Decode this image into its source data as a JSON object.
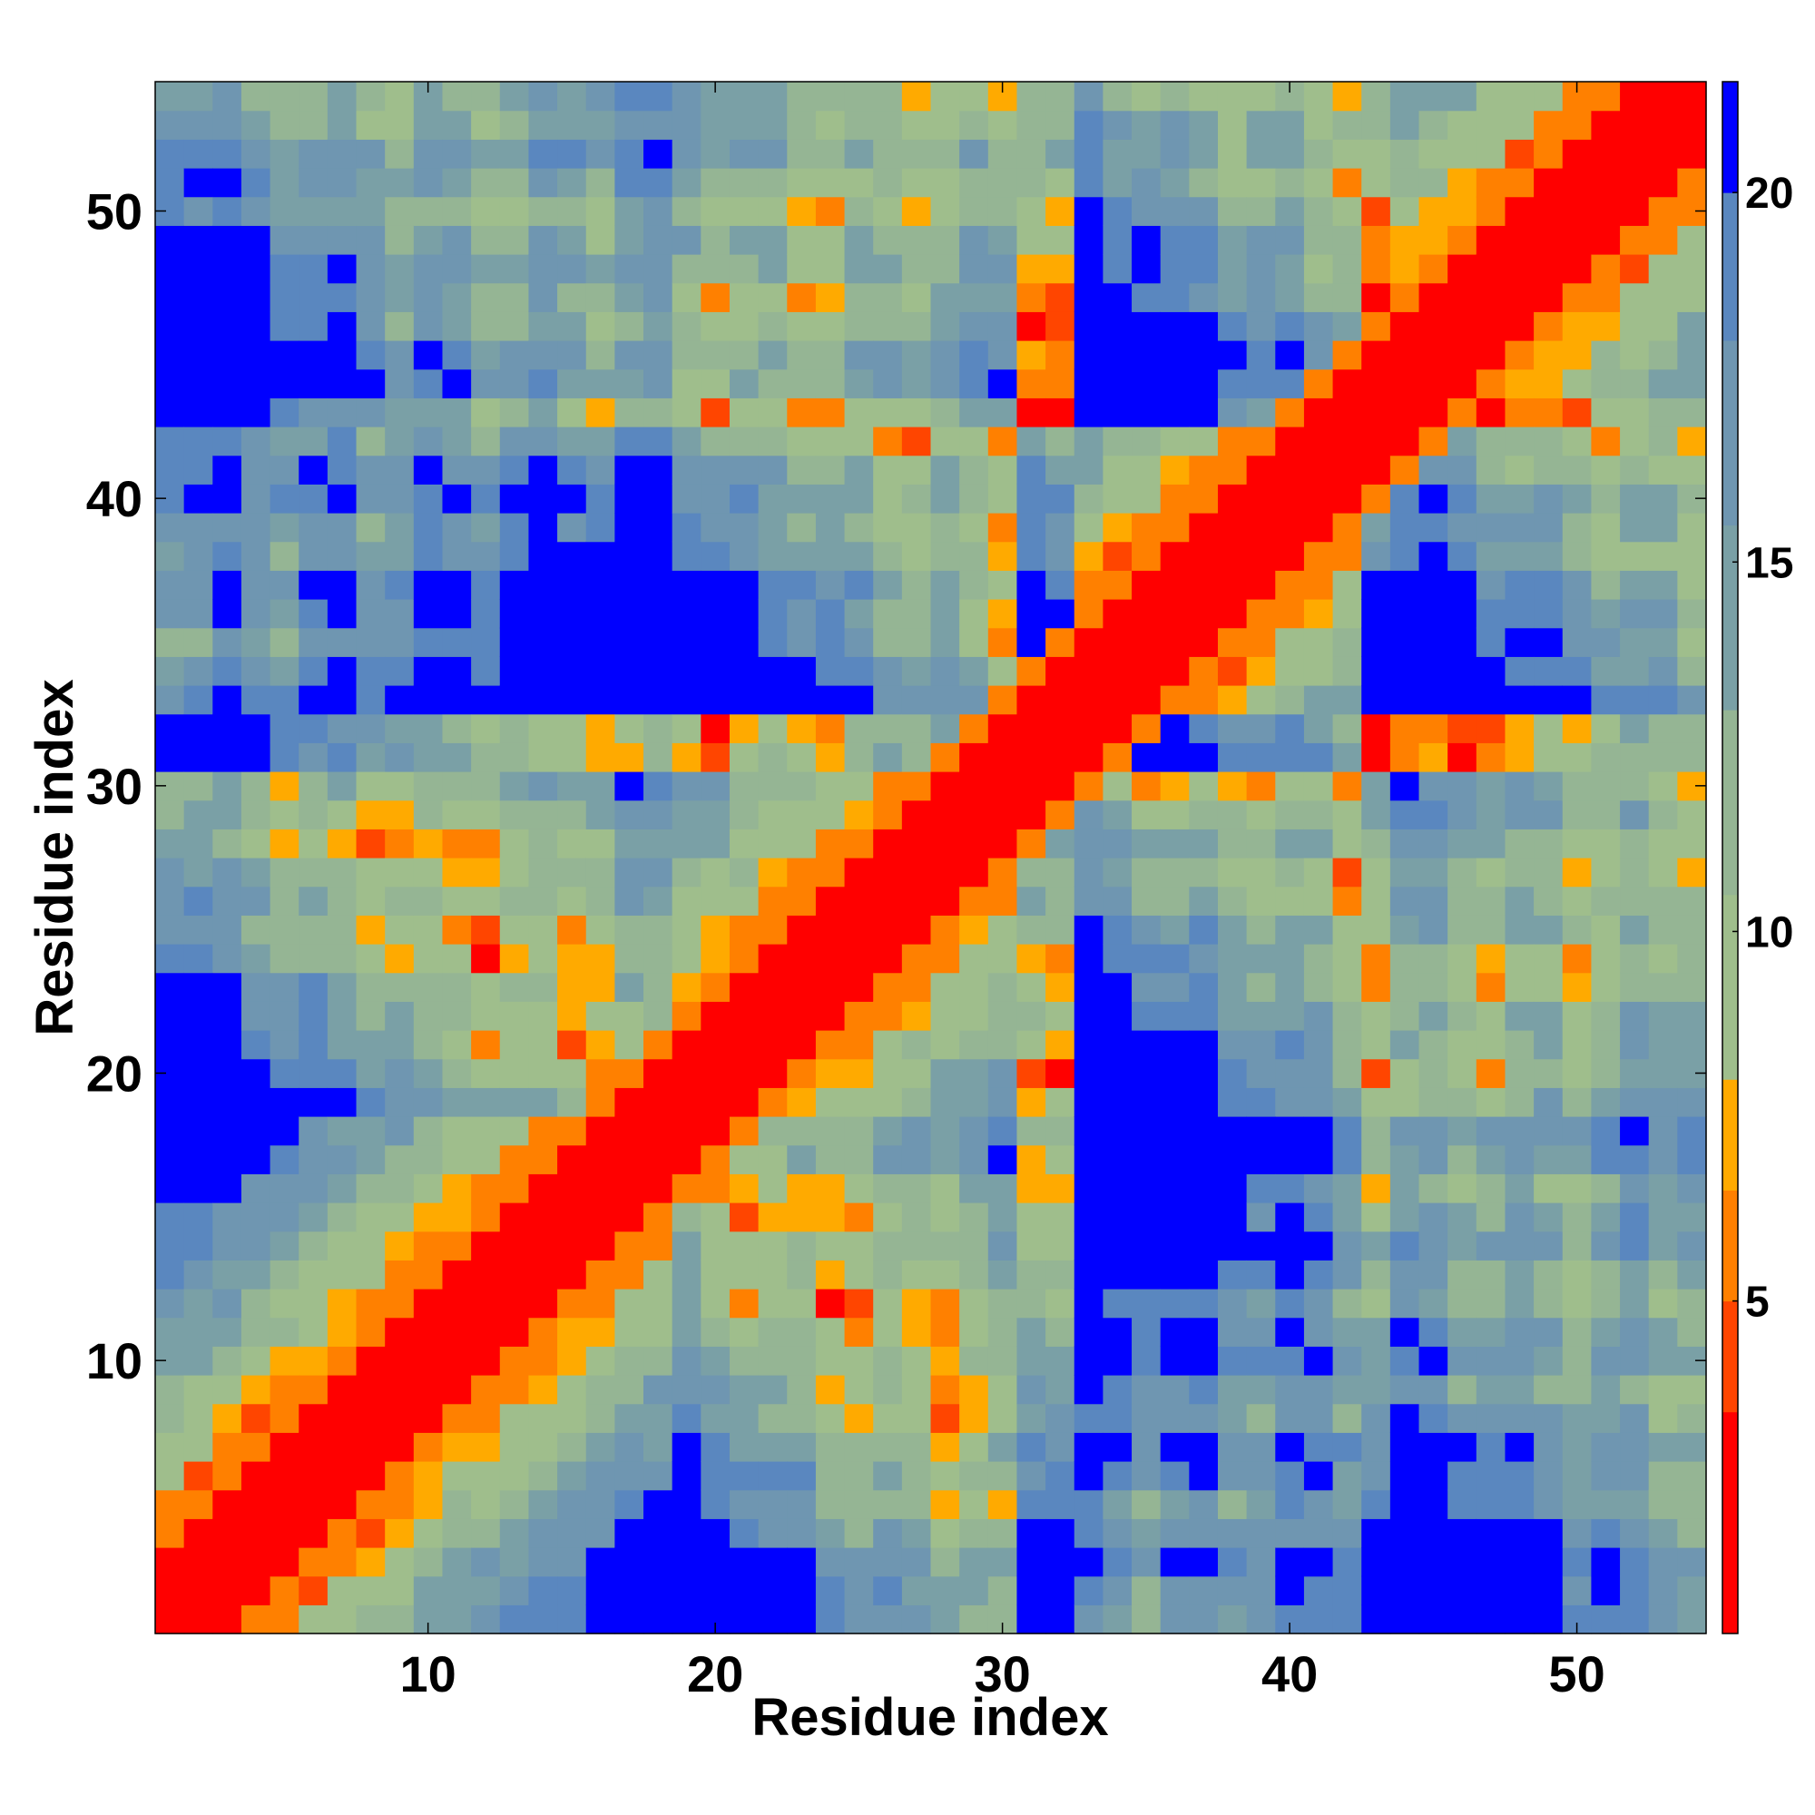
{
  "chart_data": {
    "type": "heatmap",
    "xlabel": "Residue index",
    "ylabel": "Residue index",
    "n_residues": 54,
    "x_range": [
      0.5,
      54.5
    ],
    "y_range": [
      0.5,
      54.5
    ],
    "x_ticks": [
      10,
      20,
      30,
      40,
      50
    ],
    "y_ticks": [
      10,
      20,
      30,
      40,
      50
    ],
    "colorbar": {
      "ticks": [
        5,
        10,
        15,
        20
      ],
      "range": [
        0.5,
        21.5
      ],
      "bins": [
        {
          "from": 0.5,
          "to": 3.5,
          "color": "#ff0000"
        },
        {
          "from": 3.5,
          "to": 5.0,
          "color": "#ff4500"
        },
        {
          "from": 5.0,
          "to": 6.5,
          "color": "#ff8000"
        },
        {
          "from": 6.5,
          "to": 8.0,
          "color": "#ffaa00"
        },
        {
          "from": 8.0,
          "to": 10.5,
          "color": "#9fbe8c"
        },
        {
          "from": 10.5,
          "to": 13.0,
          "color": "#95b594"
        },
        {
          "from": 13.0,
          "to": 15.5,
          "color": "#7aa0a6"
        },
        {
          "from": 15.5,
          "to": 18.0,
          "color": "#6f96b1"
        },
        {
          "from": 18.0,
          "to": 20.0,
          "color": "#5a87bf"
        },
        {
          "from": 20.0,
          "to": 21.5,
          "color": "#0000ff"
        }
      ]
    },
    "colors": {
      "contact": "#ff0000",
      "near": "#ff8000",
      "mid": "#9fbe8c",
      "far": "#5a87bf",
      "max": "#0000ff"
    }
  }
}
